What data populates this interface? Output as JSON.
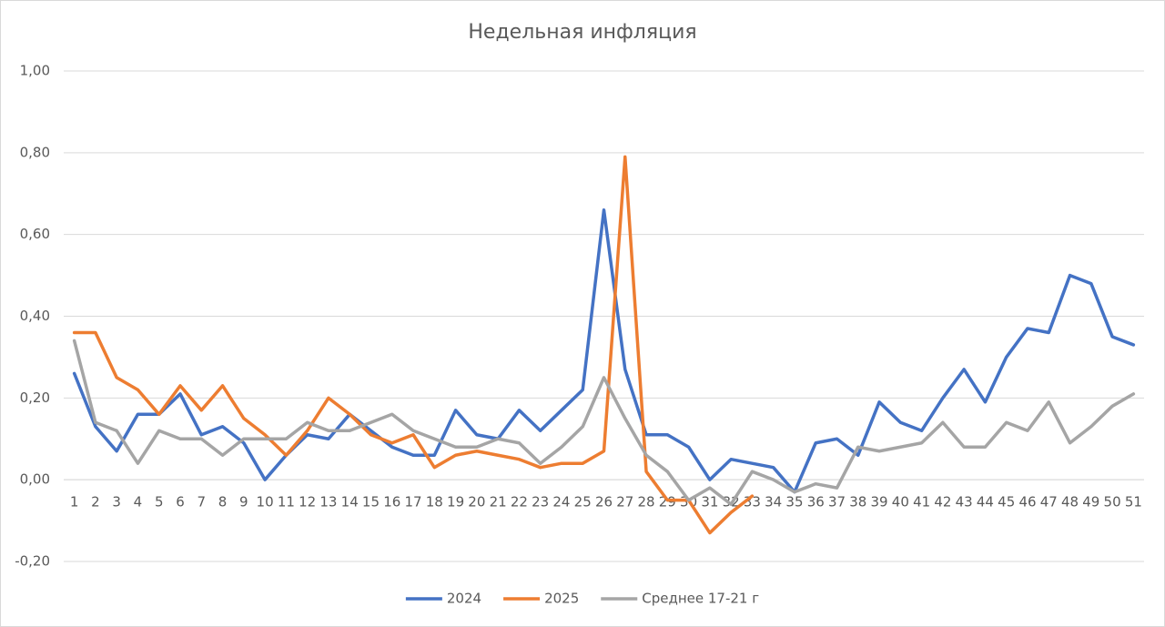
{
  "chart_data": {
    "type": "line",
    "title": "Недельная инфляция",
    "categories": [
      1,
      2,
      3,
      4,
      5,
      6,
      7,
      8,
      9,
      10,
      11,
      12,
      13,
      14,
      15,
      16,
      17,
      18,
      19,
      20,
      21,
      22,
      23,
      24,
      25,
      26,
      27,
      28,
      29,
      30,
      31,
      32,
      33,
      34,
      35,
      36,
      37,
      38,
      39,
      40,
      41,
      42,
      43,
      44,
      45,
      46,
      47,
      48,
      49,
      50,
      51
    ],
    "series": [
      {
        "name": "2024",
        "color": "#4472c4",
        "values": [
          0.26,
          0.13,
          0.07,
          0.16,
          0.16,
          0.21,
          0.11,
          0.13,
          0.09,
          0.0,
          0.06,
          0.11,
          0.1,
          0.16,
          0.12,
          0.08,
          0.06,
          0.06,
          0.17,
          0.11,
          0.1,
          0.17,
          0.12,
          0.17,
          0.22,
          0.66,
          0.27,
          0.11,
          0.11,
          0.08,
          0.0,
          0.05,
          0.04,
          0.03,
          -0.03,
          0.09,
          0.1,
          0.06,
          0.19,
          0.14,
          0.12,
          0.2,
          0.27,
          0.19,
          0.3,
          0.37,
          0.36,
          0.5,
          0.48,
          0.35,
          0.33
        ]
      },
      {
        "name": "2025",
        "color": "#ed7d31",
        "values": [
          0.36,
          0.36,
          0.25,
          0.22,
          0.16,
          0.23,
          0.17,
          0.23,
          0.15,
          0.11,
          0.06,
          0.12,
          0.2,
          0.16,
          0.11,
          0.09,
          0.11,
          0.03,
          0.06,
          0.07,
          0.06,
          0.05,
          0.03,
          0.04,
          0.04,
          0.07,
          0.79,
          0.02,
          -0.05,
          -0.05,
          -0.13,
          -0.08,
          -0.04,
          null,
          null,
          null,
          null,
          null,
          null,
          null,
          null,
          null,
          null,
          null,
          null,
          null,
          null,
          null,
          null,
          null,
          null
        ]
      },
      {
        "name": "Среднее 17-21 г",
        "color": "#a5a5a5",
        "values": [
          0.34,
          0.14,
          0.12,
          0.04,
          0.12,
          0.1,
          0.1,
          0.06,
          0.1,
          0.1,
          0.1,
          0.14,
          0.12,
          0.12,
          0.14,
          0.16,
          0.12,
          0.1,
          0.08,
          0.08,
          0.1,
          0.09,
          0.04,
          0.08,
          0.13,
          0.25,
          0.15,
          0.06,
          0.02,
          -0.05,
          -0.02,
          -0.06,
          0.02,
          0.0,
          -0.03,
          -0.01,
          -0.02,
          0.08,
          0.07,
          0.08,
          0.09,
          0.14,
          0.08,
          0.08,
          0.14,
          0.12,
          0.19,
          0.09,
          0.13,
          0.18,
          0.21
        ]
      }
    ],
    "ylim": [
      -0.2,
      1.0
    ],
    "yticks": [
      {
        "value": -0.2,
        "label": "-0,20"
      },
      {
        "value": 0,
        "label": "0,00"
      },
      {
        "value": 0.2,
        "label": "0,20"
      },
      {
        "value": 0.4,
        "label": "0,40"
      },
      {
        "value": 0.6,
        "label": "0,60"
      },
      {
        "value": 0.8,
        "label": "0,80"
      },
      {
        "value": 1.0,
        "label": "1,00"
      }
    ],
    "grid": true,
    "legend": "bottom"
  }
}
